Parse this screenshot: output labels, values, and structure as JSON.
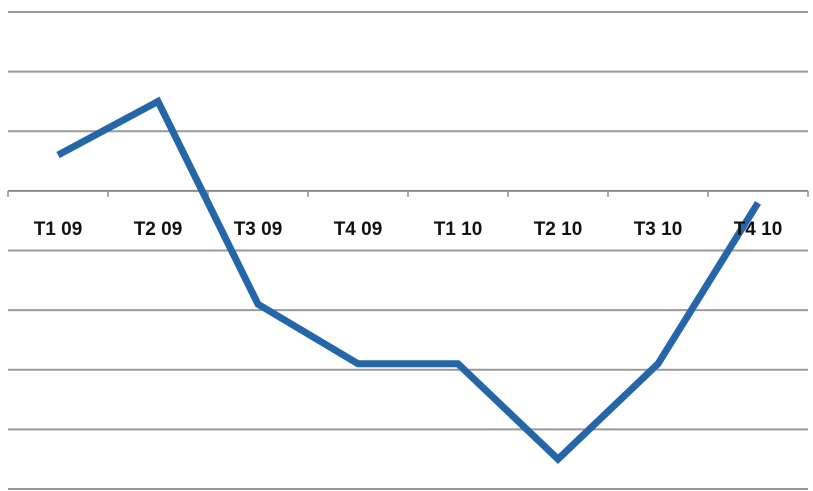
{
  "chart_data": {
    "type": "line",
    "categories": [
      "T1 09",
      "T2 09",
      "T3 09",
      "T4 09",
      "T1 10",
      "T2 10",
      "T3 10",
      "T4 10"
    ],
    "series": [
      {
        "values": [
          0.6,
          1.5,
          -1.9,
          -2.9,
          -2.9,
          -4.5,
          -2.9,
          -0.2
        ],
        "color": "#2566a8"
      }
    ],
    "ylim": [
      -5.0,
      3.0
    ],
    "y_gridline_step": 1.0,
    "grid": true,
    "legend": "none",
    "xaxis_at": 0,
    "colors": {
      "line": "#2566a8",
      "grid": "#9a9a9a",
      "axis": "#8c8c8c",
      "labels": "#111111"
    }
  }
}
